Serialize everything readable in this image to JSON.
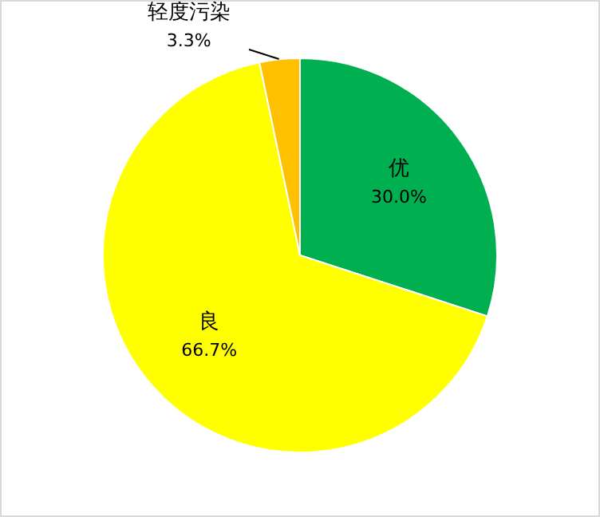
{
  "chart_data": {
    "type": "pie",
    "categories": [
      "优",
      "良",
      "轻度污染"
    ],
    "values": [
      30.0,
      66.7,
      3.3
    ],
    "colors": [
      "#00b050",
      "#ffff00",
      "#ffc000"
    ],
    "value_labels": [
      "30.0%",
      "66.7%",
      "3.3%"
    ],
    "legend": false
  }
}
